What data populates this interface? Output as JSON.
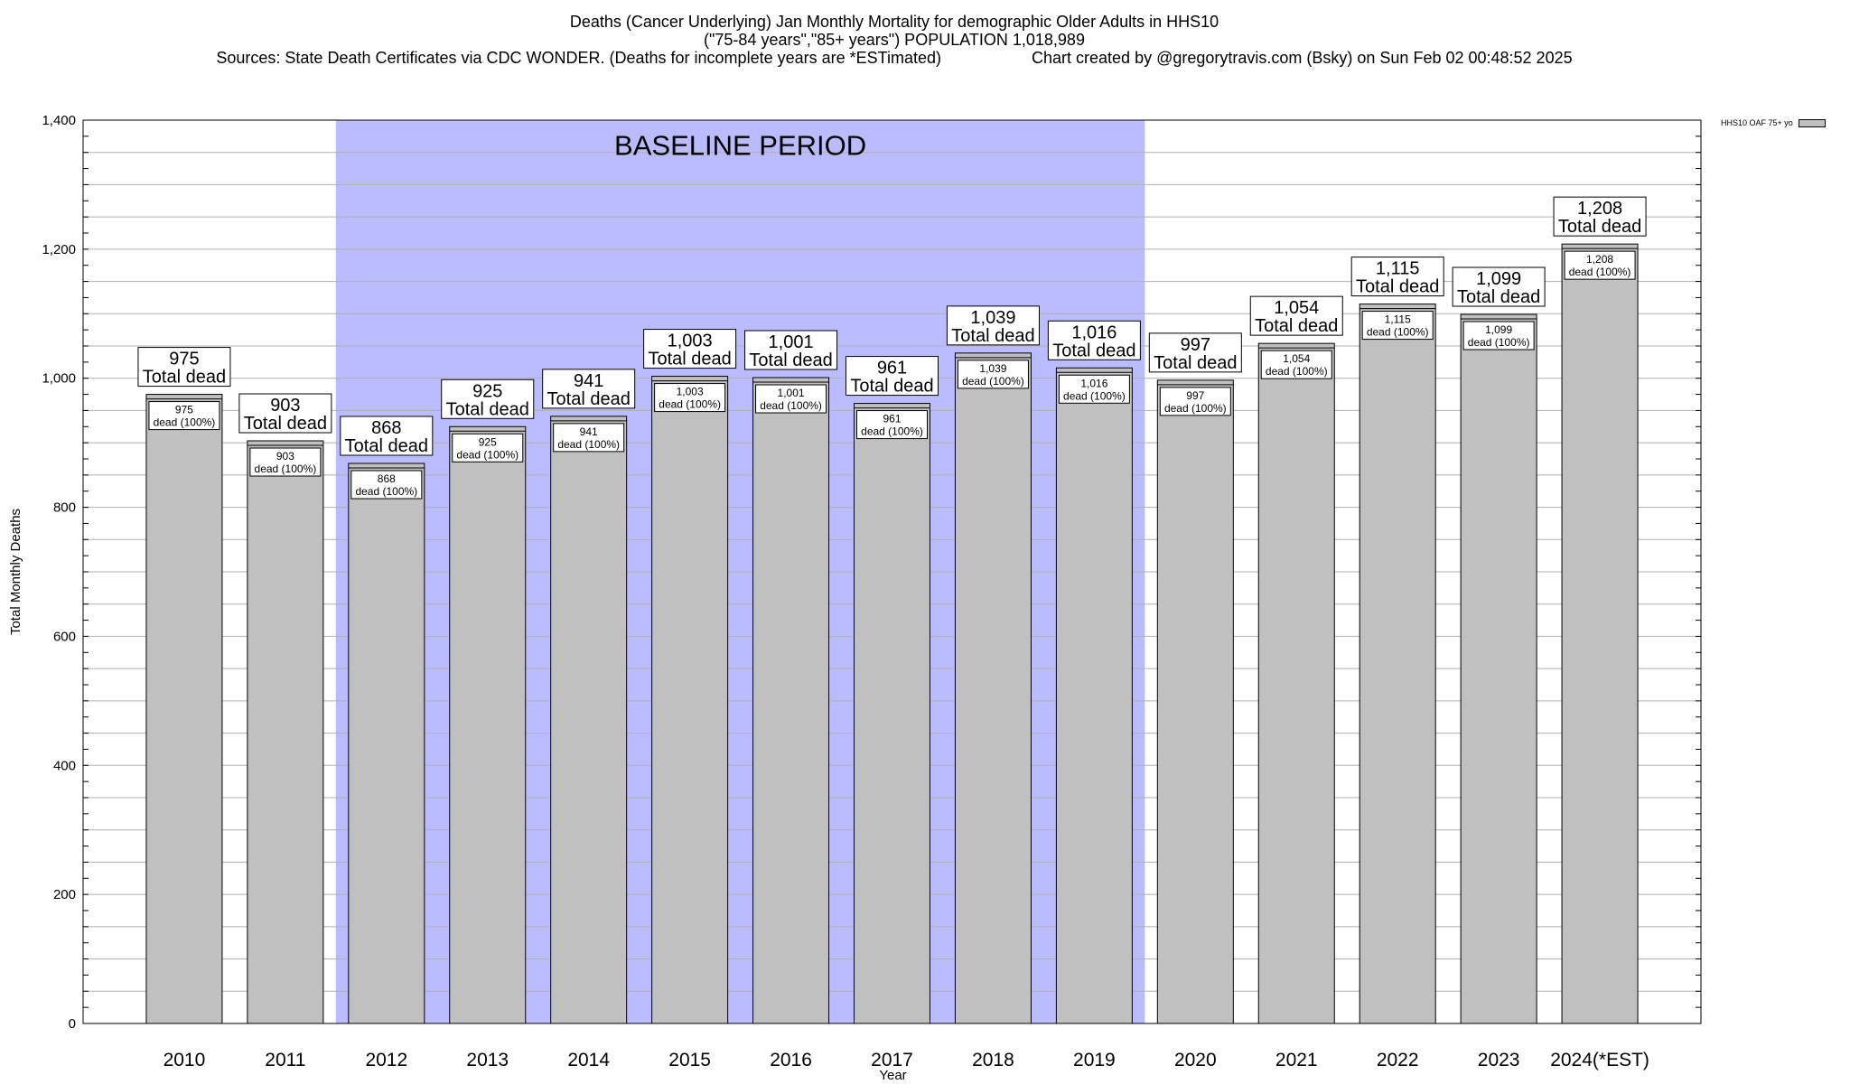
{
  "chart_data": {
    "type": "bar",
    "title": "Deaths (Cancer Underlying) Jan Monthly Mortality for demographic Older Adults in HHS10",
    "subtitle": "(\"75-84 years\",\"85+ years\") POPULATION 1,018,989",
    "sources": "Sources: State Death Certificates via CDC WONDER. (Deaths for incomplete years are *ESTimated)",
    "credit": "Chart created by @gregorytravis.com (Bsky) on Sun Feb 02 00:48:52 2025",
    "xlabel": "Year",
    "ylabel": "Total Monthly Deaths",
    "ylim": [
      0,
      1400
    ],
    "yticks": [
      0,
      200,
      400,
      600,
      800,
      1000,
      1200,
      1400
    ],
    "ytick_labels": [
      "0",
      "200",
      "400",
      "600",
      "800",
      "1,000",
      "1,200",
      "1,400"
    ],
    "grid": true,
    "legend_position": "top-right",
    "categories": [
      "2010",
      "2011",
      "2012",
      "2013",
      "2014",
      "2015",
      "2016",
      "2017",
      "2018",
      "2019",
      "2020",
      "2021",
      "2022",
      "2023",
      "2024(*EST)"
    ],
    "series": [
      {
        "name": "HHS10 OAF 75+ yo",
        "color": "#c0c0c0",
        "values": [
          975,
          903,
          868,
          925,
          941,
          1003,
          1001,
          961,
          1039,
          1016,
          997,
          1054,
          1115,
          1099,
          1208
        ],
        "value_labels": [
          "975",
          "903",
          "868",
          "925",
          "941",
          "1,003",
          "1,001",
          "961",
          "1,039",
          "1,016",
          "997",
          "1,054",
          "1,115",
          "1,099",
          "1,208"
        ]
      }
    ],
    "top_label_suffix": "Total dead",
    "inner_label_suffix": "dead (100%)",
    "baseline_period": {
      "label": "BASELINE PERIOD",
      "start": "2012",
      "end": "2019",
      "color": "#bbbbff"
    }
  }
}
